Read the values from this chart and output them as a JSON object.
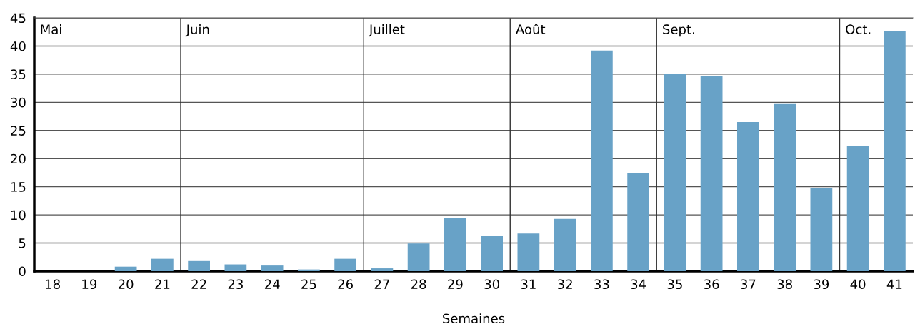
{
  "chart_data": {
    "type": "bar",
    "xlabel": "Semaines",
    "x": [
      18,
      19,
      20,
      21,
      22,
      23,
      24,
      25,
      26,
      27,
      28,
      29,
      30,
      31,
      32,
      33,
      34,
      35,
      36,
      37,
      38,
      39,
      40,
      41
    ],
    "values": [
      0,
      0,
      0.8,
      2.2,
      1.8,
      1.2,
      1.0,
      0.3,
      2.2,
      0.5,
      4.9,
      9.4,
      6.2,
      6.7,
      9.3,
      39.2,
      17.5,
      35.0,
      34.7,
      26.5,
      29.7,
      14.8,
      22.2,
      42.6
    ],
    "color": "#68a2c7",
    "xlim": [
      17.5,
      41.5
    ],
    "xticks": [
      18,
      19,
      20,
      21,
      22,
      23,
      24,
      25,
      26,
      27,
      28,
      29,
      30,
      31,
      32,
      33,
      34,
      35,
      36,
      37,
      38,
      39,
      40,
      41
    ],
    "ylim": [
      0,
      45
    ],
    "yticks": [
      0,
      5,
      10,
      15,
      20,
      25,
      30,
      35,
      40,
      45
    ],
    "grid": "y",
    "annotations": [
      "Mai"
    ],
    "ref_lines": [
      {
        "axis": "x",
        "value": 21.5,
        "label": "Juin"
      },
      {
        "axis": "x",
        "value": 26.5,
        "label": "Juillet"
      },
      {
        "axis": "x",
        "value": 30.5,
        "label": "Août"
      },
      {
        "axis": "x",
        "value": 34.5,
        "label": "Sept."
      },
      {
        "axis": "x",
        "value": 39.5,
        "label": "Oct."
      }
    ]
  }
}
